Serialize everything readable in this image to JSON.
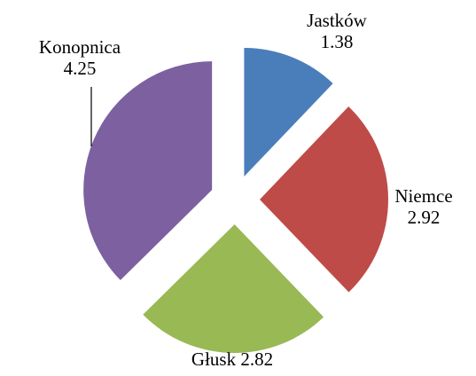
{
  "chart_data": {
    "type": "pie",
    "categories": [
      "Jastków",
      "Niemce",
      "Głusk",
      "Konopnica"
    ],
    "values": [
      1.38,
      2.92,
      2.82,
      4.25
    ],
    "colors": [
      "#4a7ebb",
      "#be4b48",
      "#98b954",
      "#7d60a0"
    ]
  }
}
